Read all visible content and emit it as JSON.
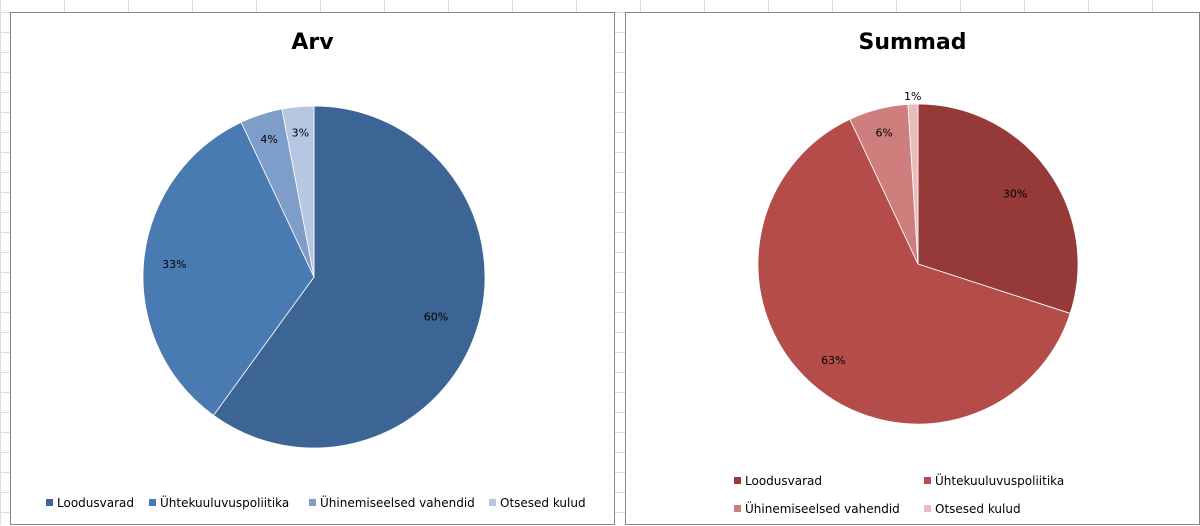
{
  "chart_data": [
    {
      "type": "pie",
      "title": "Arv",
      "categories": [
        "Loodusvarad",
        "Ühtekuuluvuspoliitika",
        "Ühinemiseelsed vahendid",
        "Otsesed kulud"
      ],
      "values": [
        60,
        33,
        4,
        3
      ],
      "value_labels": [
        "60%",
        "33%",
        "4%",
        "3%"
      ],
      "colors": [
        "#3c6595",
        "#4a7ab2",
        "#7e9dc9",
        "#b7c7e2"
      ],
      "legend_position": "bottom"
    },
    {
      "type": "pie",
      "title": "Summad",
      "categories": [
        "Loodusvarad",
        "Ühtekuuluvuspoliitika",
        "Ühinemiseelsed vahendid",
        "Otsesed kulud"
      ],
      "values": [
        30,
        63,
        6,
        1
      ],
      "value_labels": [
        "30%",
        "63%",
        "6%",
        "1%"
      ],
      "colors": [
        "#953a39",
        "#b44c4a",
        "#cf7e7e",
        "#e8bcbb"
      ],
      "legend_position": "bottom"
    }
  ]
}
